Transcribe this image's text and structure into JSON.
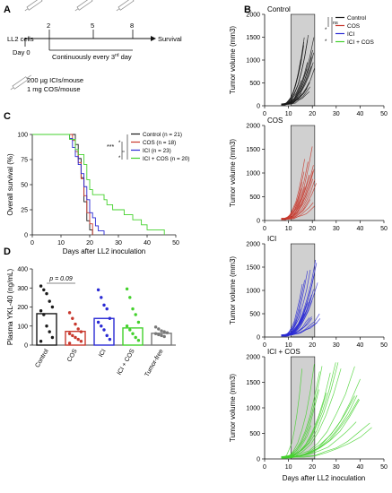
{
  "panel_letters": {
    "a": "A",
    "b": "B",
    "c": "C",
    "d": "D"
  },
  "panel_a": {
    "cell_label": "LL2 cells",
    "day_label": "Day 0",
    "days": [
      "2",
      "5",
      "8"
    ],
    "survival_label": "Survival",
    "continuous_label": "Continuously every 3",
    "continuous_sup": "rd",
    "continuous_suffix": " day",
    "dose_line1": "200 µg ICIs/mouse",
    "dose_line2": "1 mg COS/mouse"
  },
  "colors": {
    "control": "#1a1a1a",
    "cos": "#c8382d",
    "ici": "#2a2ad4",
    "combo": "#43d12c",
    "tumorfree": "#777777",
    "shade": "#d0d0d0"
  },
  "chart_data": [
    {
      "panel": "C",
      "type": "line",
      "ylabel": "Overall survival (%)",
      "xlabel": "Days after LL2 inoculation",
      "xlim": [
        0,
        50
      ],
      "ylim": [
        0,
        100
      ],
      "x_ticks": [
        "0",
        "10",
        "20",
        "30",
        "40",
        "50"
      ],
      "y_ticks": [
        "0",
        "25",
        "50",
        "75",
        "100"
      ],
      "significance": [
        "***",
        "*",
        "*"
      ],
      "series": [
        {
          "name": "Control (n = 21)",
          "color": "#1a1a1a",
          "steps": [
            [
              0,
              100
            ],
            [
              14,
              100
            ],
            [
              15,
              90
            ],
            [
              16,
              76
            ],
            [
              17,
              57
            ],
            [
              18,
              33
            ],
            [
              19,
              14
            ],
            [
              20,
              5
            ],
            [
              21,
              0
            ]
          ]
        },
        {
          "name": "COS (n = 18)",
          "color": "#c8382d",
          "steps": [
            [
              0,
              100
            ],
            [
              13,
              100
            ],
            [
              14,
              94
            ],
            [
              15,
              83
            ],
            [
              16,
              72
            ],
            [
              17,
              56
            ],
            [
              18,
              39
            ],
            [
              19,
              22
            ],
            [
              20,
              11
            ],
            [
              21,
              0
            ]
          ]
        },
        {
          "name": "ICI (n = 23)",
          "color": "#2a2ad4",
          "steps": [
            [
              0,
              100
            ],
            [
              12,
              100
            ],
            [
              13,
              96
            ],
            [
              14,
              87
            ],
            [
              15,
              78
            ],
            [
              16,
              70
            ],
            [
              17,
              61
            ],
            [
              18,
              48
            ],
            [
              19,
              35
            ],
            [
              20,
              22
            ],
            [
              21,
              17
            ],
            [
              22,
              9
            ],
            [
              23,
              4
            ],
            [
              25,
              0
            ]
          ]
        },
        {
          "name": "ICI + COS (n = 20)",
          "color": "#43d12c",
          "steps": [
            [
              0,
              100
            ],
            [
              12,
              100
            ],
            [
              13,
              95
            ],
            [
              15,
              85
            ],
            [
              16,
              80
            ],
            [
              18,
              70
            ],
            [
              19,
              55
            ],
            [
              20,
              45
            ],
            [
              21,
              40
            ],
            [
              25,
              35
            ],
            [
              26,
              30
            ],
            [
              28,
              25
            ],
            [
              32,
              20
            ],
            [
              35,
              15
            ],
            [
              38,
              10
            ],
            [
              40,
              5
            ],
            [
              46,
              0
            ]
          ]
        }
      ]
    },
    {
      "panel": "D",
      "type": "bar",
      "ylabel": "Plasma YKL-40 (ng/mL)",
      "categories": [
        "Control",
        "COS",
        "ICI",
        "ICI + COS",
        "Tumor-free"
      ],
      "values": [
        165,
        72,
        140,
        90,
        62
      ],
      "colors": [
        "#1a1a1a",
        "#c8382d",
        "#2a2ad4",
        "#43d12c",
        "#777777"
      ],
      "ylim": [
        0,
        400
      ],
      "y_ticks": [
        "0",
        "100",
        "200",
        "300",
        "400"
      ],
      "annotation": "p = 0.09",
      "points": [
        [
          310,
          290,
          270,
          230,
          200,
          180,
          160,
          100,
          70,
          40,
          20
        ],
        [
          170,
          140,
          110,
          85,
          70,
          60,
          50,
          40,
          30,
          20,
          10
        ],
        [
          290,
          250,
          210,
          190,
          140,
          120,
          100,
          80,
          50,
          30
        ],
        [
          295,
          250,
          190,
          160,
          120,
          100,
          80,
          60,
          40,
          25
        ],
        [
          95,
          85,
          75,
          70,
          65,
          60,
          55,
          50,
          45
        ]
      ]
    },
    {
      "panel": "B",
      "type": "line",
      "ylabel": "Tumor volume (mm3)",
      "xlabel": "Days after LL2 inoculation",
      "xlim": [
        0,
        50
      ],
      "ylim": [
        0,
        2000
      ],
      "x_ticks": [
        "0",
        "10",
        "20",
        "30",
        "40",
        "50"
      ],
      "y_ticks": [
        "0",
        "500",
        "1000",
        "1500",
        "2000"
      ],
      "shaded_x": [
        11,
        21
      ],
      "legend": [
        "Control",
        "COS",
        "ICI",
        "ICI + COS"
      ],
      "significance": [
        "*",
        "ns",
        "*"
      ],
      "subpanels": [
        {
          "title": "Control",
          "color": "#1a1a1a",
          "max_day": 21,
          "n": 21,
          "end_range": [
            200,
            1550
          ],
          "start_day": 7
        },
        {
          "title": "COS",
          "color": "#c8382d",
          "max_day": 22,
          "n": 18,
          "end_range": [
            250,
            1600
          ],
          "start_day": 7
        },
        {
          "title": "ICI",
          "color": "#2a2ad4",
          "max_day": 25,
          "n": 23,
          "end_range": [
            300,
            1700
          ],
          "start_day": 7
        },
        {
          "title": "ICI + COS",
          "color": "#43d12c",
          "max_day": 46,
          "n": 20,
          "end_range": [
            600,
            1900
          ],
          "start_day": 7
        }
      ]
    }
  ]
}
